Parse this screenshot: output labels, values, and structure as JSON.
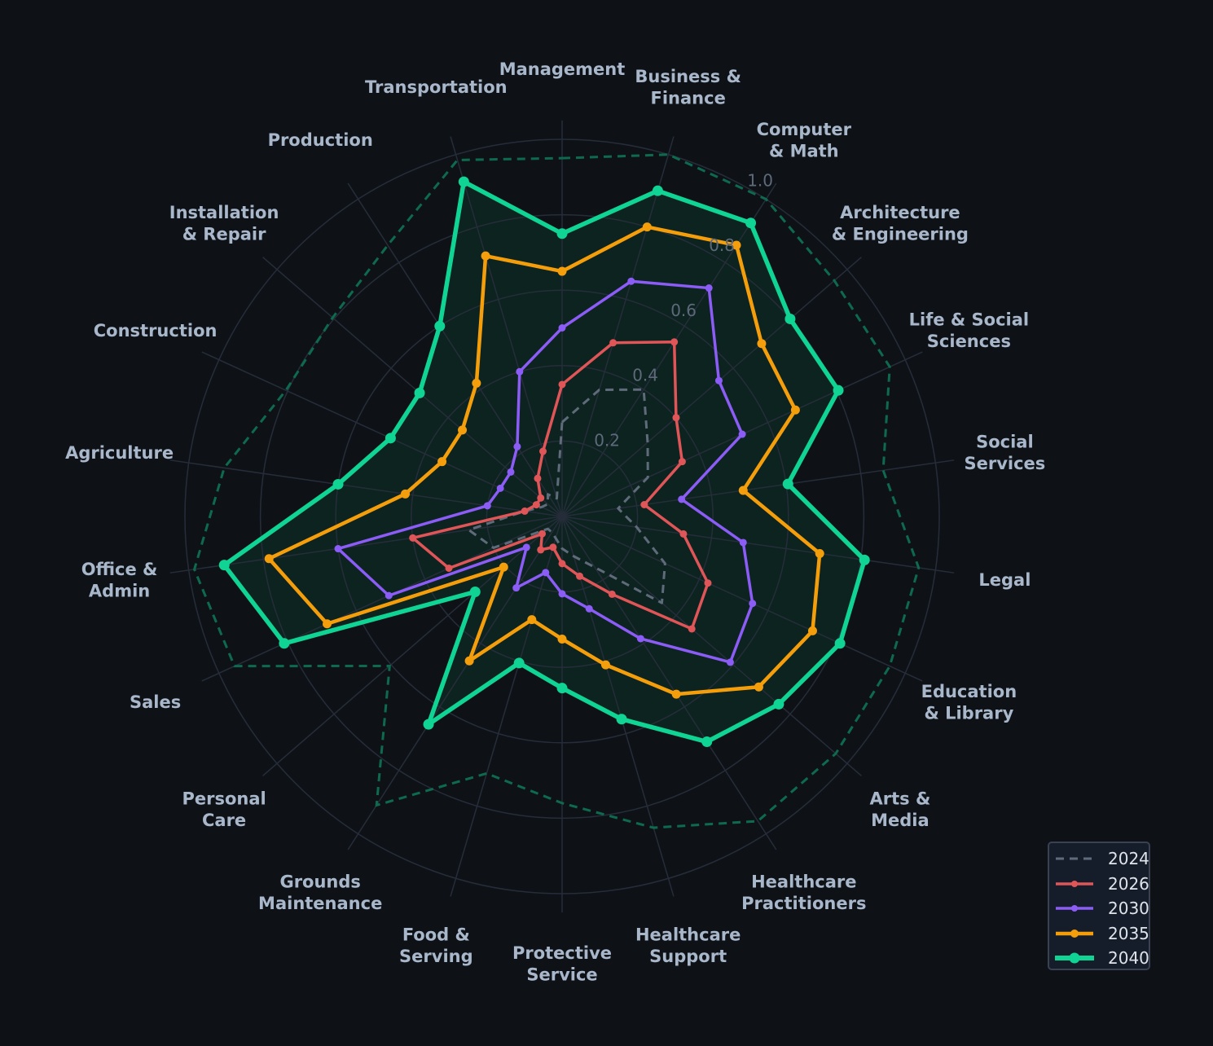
{
  "chart_data": {
    "type": "radar",
    "title": "",
    "categories": [
      "Management",
      "Business & Finance",
      "Computer & Math",
      "Architecture & Engineering",
      "Life & Social Sciences",
      "Social Services",
      "Legal",
      "Education & Library",
      "Arts & Media",
      "Healthcare Practitioners",
      "Healthcare Support",
      "Protective Service",
      "Food & Serving",
      "Grounds Maintenance",
      "Personal Care",
      "Sales",
      "Office & Admin",
      "Agriculture",
      "Construction",
      "Installation & Repair",
      "Production",
      "Transportation"
    ],
    "category_label_lines": [
      [
        "Management"
      ],
      [
        "Business &",
        "Finance"
      ],
      [
        "Computer",
        "& Math"
      ],
      [
        "Architecture",
        "& Engineering"
      ],
      [
        "Life & Social",
        "Sciences"
      ],
      [
        "Social",
        "Services"
      ],
      [
        "Legal"
      ],
      [
        "Education",
        "& Library"
      ],
      [
        "Arts &",
        "Media"
      ],
      [
        "Healthcare",
        "Practitioners"
      ],
      [
        "Healthcare",
        "Support"
      ],
      [
        "Protective",
        "Service"
      ],
      [
        "Food &",
        "Serving"
      ],
      [
        "Grounds",
        "Maintenance"
      ],
      [
        "Personal",
        "Care"
      ],
      [
        "Sales"
      ],
      [
        "Office &",
        "Admin"
      ],
      [
        "Agriculture"
      ],
      [
        "Construction"
      ],
      [
        "Installation",
        "& Repair"
      ],
      [
        "Production"
      ],
      [
        "Transportation"
      ]
    ],
    "radial_ticks": [
      0.2,
      0.4,
      0.6,
      0.8,
      1.0
    ],
    "radial_tick_labels": [
      "0.2",
      "0.4",
      "0.6",
      "0.8",
      "1.0"
    ],
    "rlim": [
      0,
      1.05
    ],
    "grid": true,
    "legend_position": "lower right",
    "series": [
      {
        "name": "2024",
        "color": "#5f6b7a",
        "style": "dashed",
        "marker": false,
        "width": 3,
        "values": [
          0.25,
          0.35,
          0.4,
          0.3,
          0.25,
          0.15,
          0.2,
          0.3,
          0.35,
          0.16,
          0.11,
          0.085,
          0.06,
          0.05,
          0.05,
          0.2,
          0.25,
          0.1,
          0.06,
          0.05,
          0.07,
          0.05
        ]
      },
      {
        "name": "2026",
        "color": "#e05557",
        "style": "solid",
        "marker": true,
        "width": 3.5,
        "marker_r": 4.5,
        "values": [
          0.35,
          0.48,
          0.55,
          0.4,
          0.35,
          0.22,
          0.325,
          0.425,
          0.455,
          0.245,
          0.165,
          0.125,
          0.085,
          0.105,
          0.07,
          0.33,
          0.4,
          0.1,
          0.075,
          0.075,
          0.12,
          0.18
        ]
      },
      {
        "name": "2030",
        "color": "#8b5cf6",
        "style": "solid",
        "marker": true,
        "width": 3.5,
        "marker_r": 4.5,
        "values": [
          0.5,
          0.65,
          0.72,
          0.55,
          0.525,
          0.32,
          0.485,
          0.555,
          0.59,
          0.385,
          0.255,
          0.205,
          0.155,
          0.225,
          0.125,
          0.505,
          0.6,
          0.2,
          0.18,
          0.18,
          0.22,
          0.4
        ]
      },
      {
        "name": "2035",
        "color": "#f59e0b",
        "style": "solid",
        "marker": true,
        "width": 4.5,
        "marker_r": 5.5,
        "values": [
          0.65,
          0.8,
          0.855,
          0.7,
          0.68,
          0.485,
          0.69,
          0.73,
          0.69,
          0.56,
          0.41,
          0.325,
          0.285,
          0.455,
          0.205,
          0.685,
          0.785,
          0.42,
          0.35,
          0.35,
          0.42,
          0.72
        ]
      },
      {
        "name": "2040",
        "color": "#10d493",
        "style": "solid",
        "marker": true,
        "width": 5.5,
        "marker_r": 6.5,
        "fill": "#0d2320",
        "values": [
          0.75,
          0.9,
          0.925,
          0.8,
          0.805,
          0.605,
          0.81,
          0.81,
          0.76,
          0.71,
          0.56,
          0.455,
          0.405,
          0.655,
          0.305,
          0.81,
          0.905,
          0.6,
          0.5,
          0.5,
          0.6,
          0.925
        ]
      }
    ],
    "extra_series": [
      {
        "name": "2040 upper",
        "color": "#0e6a4f",
        "style": "dashed",
        "marker": false,
        "width": 3,
        "in_legend": false,
        "values": [
          0.95,
          1.0,
          1.0,
          0.955,
          0.955,
          0.86,
          0.955,
          0.955,
          0.96,
          0.96,
          0.86,
          0.76,
          0.71,
          0.91,
          0.605,
          0.955,
          0.985,
          0.905,
          0.805,
          0.805,
          0.855,
          0.985
        ]
      }
    ]
  },
  "legend": {
    "items": [
      {
        "label": "2024",
        "color": "#5f6b7a",
        "style": "dashed"
      },
      {
        "label": "2026",
        "color": "#e05557",
        "style": "solid"
      },
      {
        "label": "2030",
        "color": "#8b5cf6",
        "style": "solid"
      },
      {
        "label": "2035",
        "color": "#f59e0b",
        "style": "solid"
      },
      {
        "label": "2040",
        "color": "#10d493",
        "style": "solid"
      }
    ]
  },
  "colors": {
    "background": "#0e1217",
    "grid": "#262d3a",
    "axis_label": "#a9b7cb",
    "tick_label": "#5e6a7b"
  }
}
